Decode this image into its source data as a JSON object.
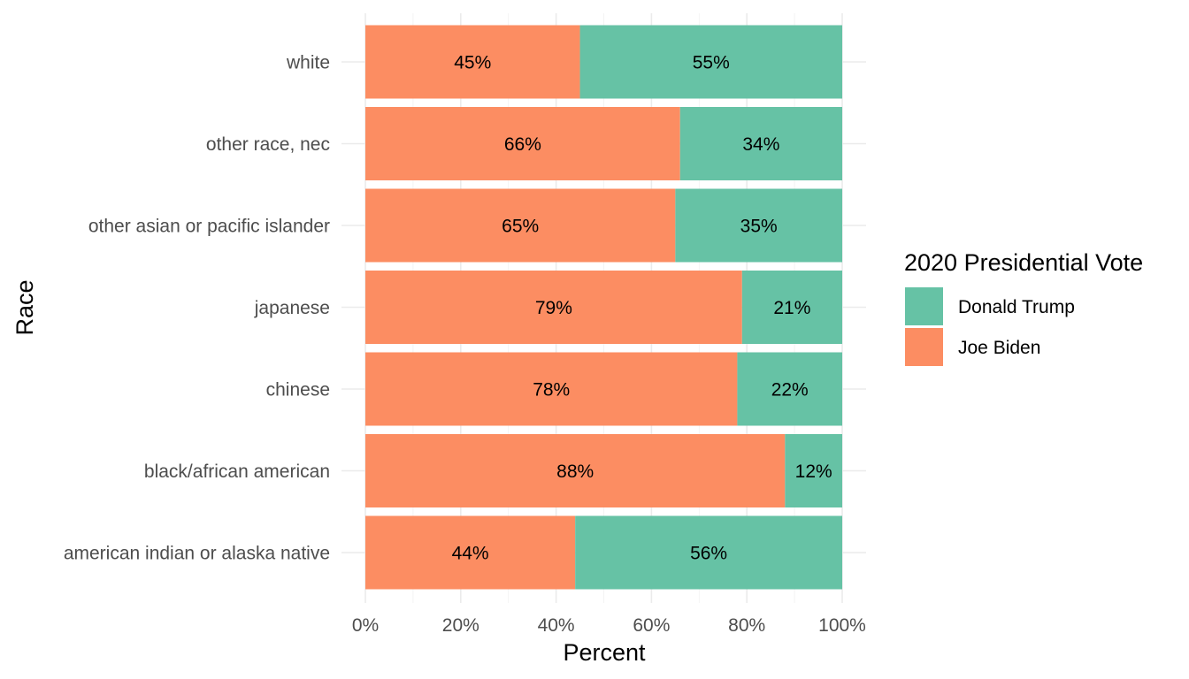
{
  "chart_data": {
    "type": "bar",
    "orientation": "horizontal",
    "stacked": "percent",
    "xlabel": "Percent",
    "ylabel": "Race",
    "xlim": [
      0,
      100
    ],
    "x_ticks": [
      "0%",
      "20%",
      "40%",
      "60%",
      "80%",
      "100%"
    ],
    "categories": [
      "white",
      "other race, nec",
      "other asian or pacific islander",
      "japanese",
      "chinese",
      "black/african american",
      "american indian or alaska native"
    ],
    "series": [
      {
        "name": "Joe Biden",
        "color": "#fc8d62",
        "values": [
          45,
          66,
          65,
          79,
          78,
          88,
          44
        ],
        "labels": [
          "45%",
          "66%",
          "65%",
          "79%",
          "78%",
          "88%",
          "44%"
        ]
      },
      {
        "name": "Donald Trump",
        "color": "#66c2a5",
        "values": [
          55,
          34,
          35,
          21,
          22,
          12,
          56
        ],
        "labels": [
          "55%",
          "34%",
          "35%",
          "21%",
          "22%",
          "12%",
          "56%"
        ]
      }
    ],
    "legend": {
      "title": "2020 Presidential Vote",
      "position": "right",
      "entries": [
        {
          "name": "Donald Trump",
          "color": "#66c2a5"
        },
        {
          "name": "Joe Biden",
          "color": "#fc8d62"
        }
      ]
    },
    "grid": true
  }
}
